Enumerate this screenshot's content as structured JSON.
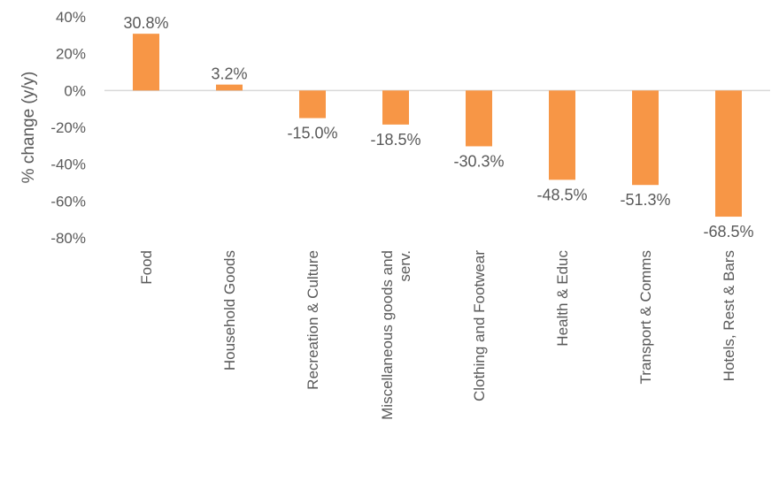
{
  "chart_data": {
    "type": "bar",
    "title": "",
    "xlabel": "",
    "ylabel": "% change (y/y)",
    "ylim": [
      -80,
      40
    ],
    "yticks": [
      "40%",
      "20%",
      "0%",
      "-20%",
      "-40%",
      "-60%",
      "-80%"
    ],
    "ytick_values": [
      40,
      20,
      0,
      -20,
      -40,
      -60,
      -80
    ],
    "categories": [
      "Food",
      "Household Goods",
      "Recreation & Culture",
      "Miscellaneous goods and serv.",
      "Clothing and Footwear",
      "Health & Educ",
      "Transport & Comms",
      "Hotels, Rest & Bars"
    ],
    "category_lines": [
      [
        "Food"
      ],
      [
        "Household Goods"
      ],
      [
        "Recreation & Culture"
      ],
      [
        "Miscellaneous goods and",
        "serv."
      ],
      [
        "Clothing and Footwear"
      ],
      [
        "Health & Educ"
      ],
      [
        "Transport & Comms"
      ],
      [
        "Hotels, Rest & Bars"
      ]
    ],
    "values": [
      30.8,
      3.2,
      -15.0,
      -18.5,
      -30.3,
      -48.5,
      -51.3,
      -68.5
    ],
    "data_labels": [
      "30.8%",
      "3.2%",
      "-15.0%",
      "-18.5%",
      "-30.3%",
      "-48.5%",
      "-51.3%",
      "-68.5%"
    ],
    "grid": false,
    "legend": "none",
    "colors": {
      "bar": "#F79646",
      "axis": "#D9D9D9",
      "text": "#595959"
    }
  }
}
